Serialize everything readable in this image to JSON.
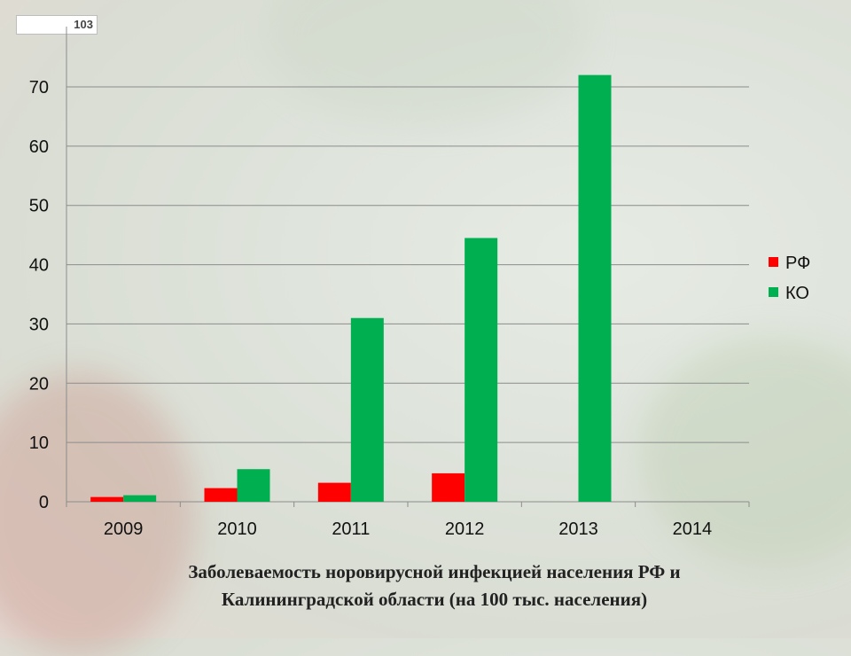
{
  "page_number": "103",
  "title_line1": "Заболеваемость норовирусной инфекцией населения РФ и",
  "title_line2": "Калининградской области (на 100 тыс. населения)",
  "colors": {
    "rf": "#ff0000",
    "ko": "#00b050",
    "grid": "#8c8c8c"
  },
  "chart_data": {
    "type": "bar",
    "categories": [
      "2009",
      "2010",
      "2011",
      "2012",
      "2013",
      "2014"
    ],
    "series": [
      {
        "name": "РФ",
        "values": [
          0.8,
          2.3,
          3.2,
          4.8,
          0,
          0
        ]
      },
      {
        "name": "КО",
        "values": [
          1.1,
          5.5,
          31.0,
          44.5,
          72.0,
          0
        ]
      }
    ],
    "ylim": [
      0,
      70
    ],
    "y_ticks": [
      0,
      10,
      20,
      30,
      40,
      50,
      60,
      70
    ],
    "grid": true,
    "legend_position": "right"
  }
}
